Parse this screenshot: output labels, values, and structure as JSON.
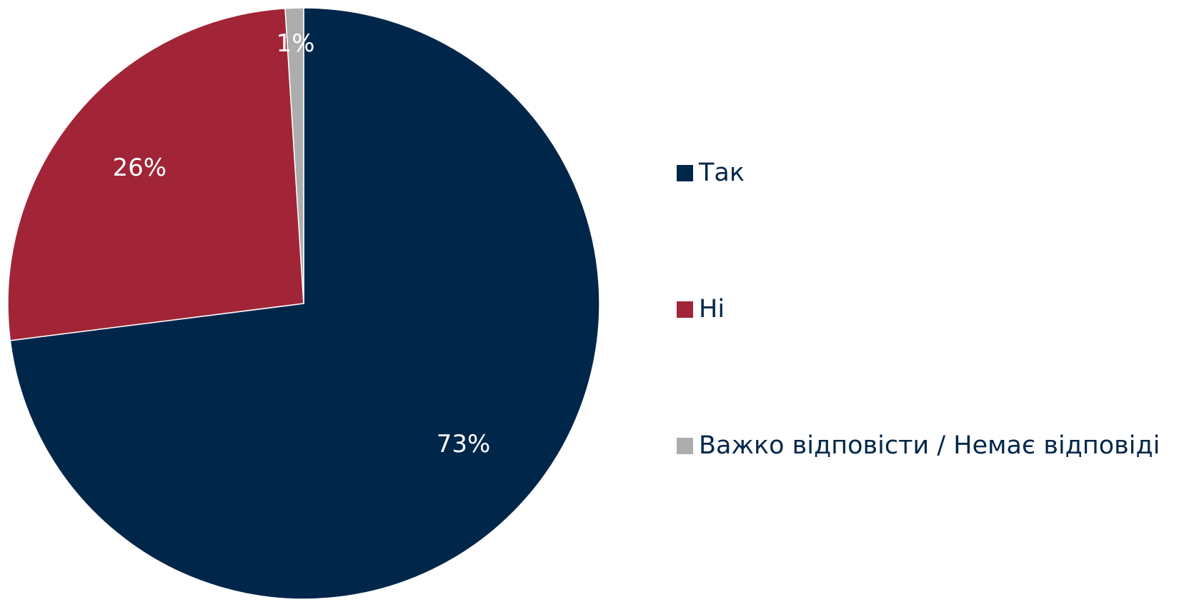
{
  "chart_data": {
    "type": "pie",
    "categories": [
      "Так",
      "Ні",
      "Важко відповісти / Немає відповіді"
    ],
    "values": [
      73,
      26,
      1
    ],
    "data_labels": [
      "73%",
      "26%",
      "1%"
    ],
    "colors": [
      "#00264a",
      "#a12537",
      "#adadad"
    ],
    "start_angle_deg": 0,
    "direction": "clockwise",
    "legend_position": "right"
  },
  "legend": {
    "items": [
      {
        "label": "Так",
        "color": "#00264a"
      },
      {
        "label": "Ні",
        "color": "#a12537"
      },
      {
        "label": "Важко відповісти / Немає відповіді",
        "color": "#adadad"
      }
    ]
  }
}
